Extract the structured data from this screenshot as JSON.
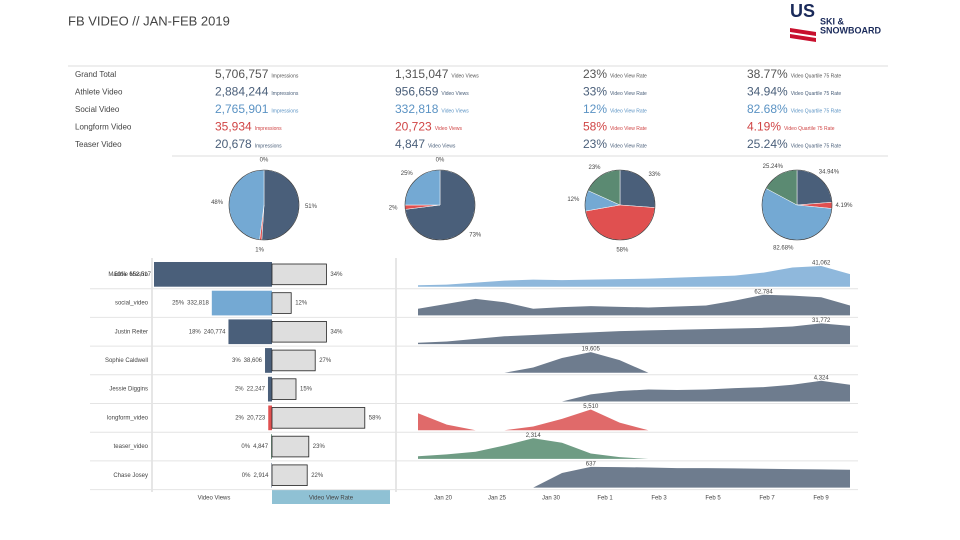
{
  "header": {
    "title": "FB VIDEO // JAN-FEB 2019",
    "logo_top": "US",
    "logo_line1": "SKI &",
    "logo_line2": "SNOWBOARD"
  },
  "kpi": {
    "units": [
      "Impressions",
      "Video Views",
      "Video View Rate",
      "Video Quartile 75 Rate"
    ],
    "rows": [
      {
        "label": "Grand Total",
        "color": "#555555",
        "cells": [
          "5,706,757",
          "1,315,047",
          "23%",
          "38.77%"
        ]
      },
      {
        "label": "Athlete Video",
        "color": "#4a5f7a",
        "cells": [
          "2,884,244",
          "956,659",
          "33%",
          "34.94%"
        ]
      },
      {
        "label": "Social Video",
        "color": "#5b93c4",
        "cells": [
          "2,765,901",
          "332,818",
          "12%",
          "82.68%"
        ]
      },
      {
        "label": "Longform Video",
        "color": "#d04545",
        "cells": [
          "35,934",
          "20,723",
          "58%",
          "4.19%"
        ]
      },
      {
        "label": "Teaser Video",
        "color": "#4a5f7a",
        "cells": [
          "20,678",
          "4,847",
          "23%",
          "25.24%"
        ]
      }
    ]
  },
  "pies": [
    {
      "slices": [
        {
          "value": 51,
          "label": "51%",
          "color": "#4a5f7a"
        },
        {
          "value": 1,
          "label": "1%",
          "color": "#e05050"
        },
        {
          "value": 48,
          "label": "48%",
          "color": "#74a9d3"
        },
        {
          "value": 0,
          "label": "0%",
          "color": "#5b8a72"
        }
      ]
    },
    {
      "slices": [
        {
          "value": 73,
          "label": "73%",
          "color": "#4a5f7a"
        },
        {
          "value": 2,
          "label": "2%",
          "color": "#e05050"
        },
        {
          "value": 25,
          "label": "25%",
          "color": "#74a9d3"
        },
        {
          "value": 0,
          "label": "0%",
          "color": "#5b8a72"
        }
      ]
    },
    {
      "slices": [
        {
          "value": 33,
          "label": "33%",
          "color": "#4a5f7a"
        },
        {
          "value": 58,
          "label": "58%",
          "color": "#e05050"
        },
        {
          "value": 12,
          "label": "12%",
          "color": "#74a9d3"
        },
        {
          "value": 23,
          "label": "23%",
          "color": "#5b8a72"
        }
      ]
    },
    {
      "slices": [
        {
          "value": 34.94,
          "label": "34.94%",
          "color": "#4a5f7a"
        },
        {
          "value": 4.19,
          "label": "4.19%",
          "color": "#e05050"
        },
        {
          "value": 82.68,
          "label": "82.68%",
          "color": "#74a9d3"
        },
        {
          "value": 25.24,
          "label": "25.24%",
          "color": "#5b8a72"
        }
      ]
    }
  ],
  "bars": {
    "views_header": "Video Views",
    "rate_header": "Video View Rate",
    "rows": [
      {
        "name": "Maddie Mastro",
        "share": "50%",
        "views": 652517,
        "views_label": "652,517",
        "rate": 34,
        "rate_label": "34%",
        "color": "#4a5f7a"
      },
      {
        "name": "social_video",
        "share": "25%",
        "views": 332818,
        "views_label": "332,818",
        "rate": 12,
        "rate_label": "12%",
        "color": "#74a9d3"
      },
      {
        "name": "Justin Reiter",
        "share": "18%",
        "views": 240774,
        "views_label": "240,774",
        "rate": 34,
        "rate_label": "34%",
        "color": "#4a5f7a"
      },
      {
        "name": "Sophie Caldwell",
        "share": "3%",
        "views": 38606,
        "views_label": "38,606",
        "rate": 27,
        "rate_label": "27%",
        "color": "#4a5f7a"
      },
      {
        "name": "Jessie Diggins",
        "share": "2%",
        "views": 22247,
        "views_label": "22,247",
        "rate": 15,
        "rate_label": "15%",
        "color": "#4a5f7a"
      },
      {
        "name": "longform_video",
        "share": "2%",
        "views": 20723,
        "views_label": "20,723",
        "rate": 58,
        "rate_label": "58%",
        "color": "#e05050"
      },
      {
        "name": "teaser_video",
        "share": "0%",
        "views": 4847,
        "views_label": "4,847",
        "rate": 23,
        "rate_label": "23%",
        "color": "#5b8a72"
      },
      {
        "name": "Chase Josey",
        "share": "0%",
        "views": 2914,
        "views_label": "2,914",
        "rate": 22,
        "rate_label": "22%",
        "color": "#4a5f7a"
      }
    ]
  },
  "areas": {
    "x_labels": [
      "Jan 20",
      "Jan 25",
      "Jan 30",
      "Feb 1",
      "Feb 3",
      "Feb 5",
      "Feb 7",
      "Feb 9"
    ],
    "rows": [
      {
        "color": "#8fb8dc",
        "peak": "41,062",
        "values": [
          3000,
          4000,
          8000,
          12000,
          14000,
          13000,
          14000,
          15000,
          16000,
          18000,
          20000,
          22000,
          28000,
          38000,
          41062,
          25000
        ]
      },
      {
        "color": "#6e7c8e",
        "peak": "62,784",
        "values": [
          20000,
          35000,
          50000,
          40000,
          20000,
          25000,
          28000,
          26000,
          24000,
          27000,
          30000,
          45000,
          62784,
          60000,
          55000,
          30000
        ]
      },
      {
        "color": "#6e7c8e",
        "peak": "31,772",
        "values": [
          2000,
          4000,
          8000,
          12000,
          14000,
          16000,
          18000,
          20000,
          21000,
          22000,
          23000,
          24000,
          25000,
          27000,
          31772,
          28000
        ]
      },
      {
        "color": "#6e7c8e",
        "peak": "19,605",
        "values": [
          0,
          0,
          0,
          0,
          5000,
          14000,
          19605,
          12000,
          0,
          0,
          0,
          0,
          0,
          0,
          0,
          0
        ]
      },
      {
        "color": "#6e7c8e",
        "peak": "4,324",
        "values": [
          0,
          0,
          0,
          0,
          0,
          0,
          1500,
          2200,
          2500,
          2400,
          2500,
          2800,
          3000,
          3500,
          4324,
          3500
        ]
      },
      {
        "color": "#e06a6a",
        "peak": "5,510",
        "values": [
          4500,
          1500,
          0,
          0,
          1000,
          3000,
          5510,
          2000,
          0,
          0,
          0,
          0,
          0,
          0,
          0,
          0
        ]
      },
      {
        "color": "#6f9c84",
        "peak": "2,314",
        "values": [
          300,
          500,
          800,
          1500,
          2314,
          1800,
          600,
          200,
          0,
          0,
          0,
          0,
          0,
          0,
          0,
          0
        ]
      },
      {
        "color": "#6e7c8e",
        "peak": "637",
        "values": [
          0,
          0,
          0,
          0,
          0,
          450,
          637,
          630,
          620,
          600,
          600,
          590,
          580,
          570,
          560,
          550
        ]
      }
    ]
  }
}
